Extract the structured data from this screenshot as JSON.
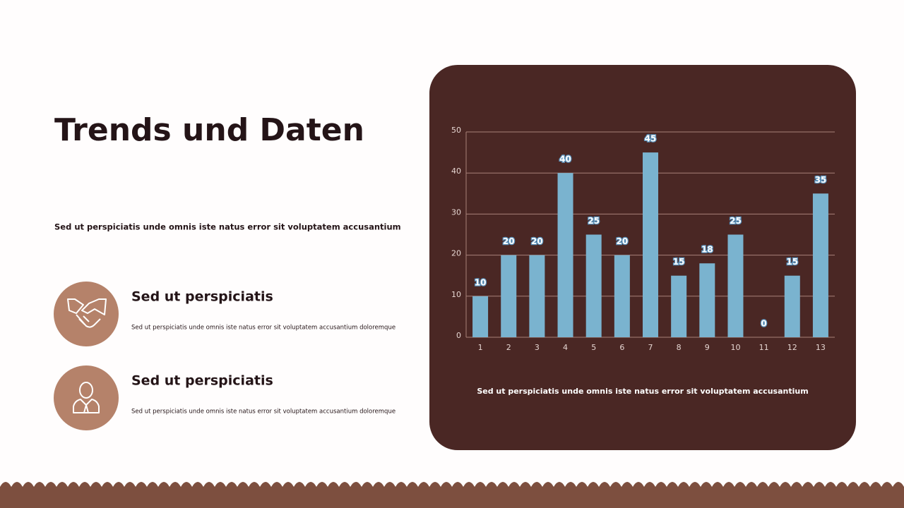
{
  "title": "Trends und Daten",
  "intro": "Sed ut perspiciatis unde omnis iste natus error sit voluptatem accusantium",
  "items": [
    {
      "heading": "Sed ut perspiciatis",
      "text": "Sed ut perspiciatis unde omnis iste natus error sit voluptatem accusantium doloremque"
    },
    {
      "heading": "Sed ut perspiciatis",
      "text": "Sed ut perspiciatis unde omnis iste natus error sit voluptatem accusantium doloremque"
    }
  ],
  "chart_data": {
    "type": "bar",
    "categories": [
      "1",
      "2",
      "3",
      "4",
      "5",
      "6",
      "7",
      "8",
      "9",
      "10",
      "11",
      "12",
      "13"
    ],
    "values": [
      10,
      20,
      20,
      40,
      25,
      20,
      45,
      15,
      18,
      25,
      0,
      15,
      35
    ],
    "color": "#7ab3cf",
    "ylim": [
      0,
      50
    ],
    "yticks": [
      0,
      10,
      20,
      30,
      40,
      50
    ],
    "grid": true,
    "caption": "Sed ut perspiciatis unde omnis iste natus error sit voluptatem accusantium"
  }
}
